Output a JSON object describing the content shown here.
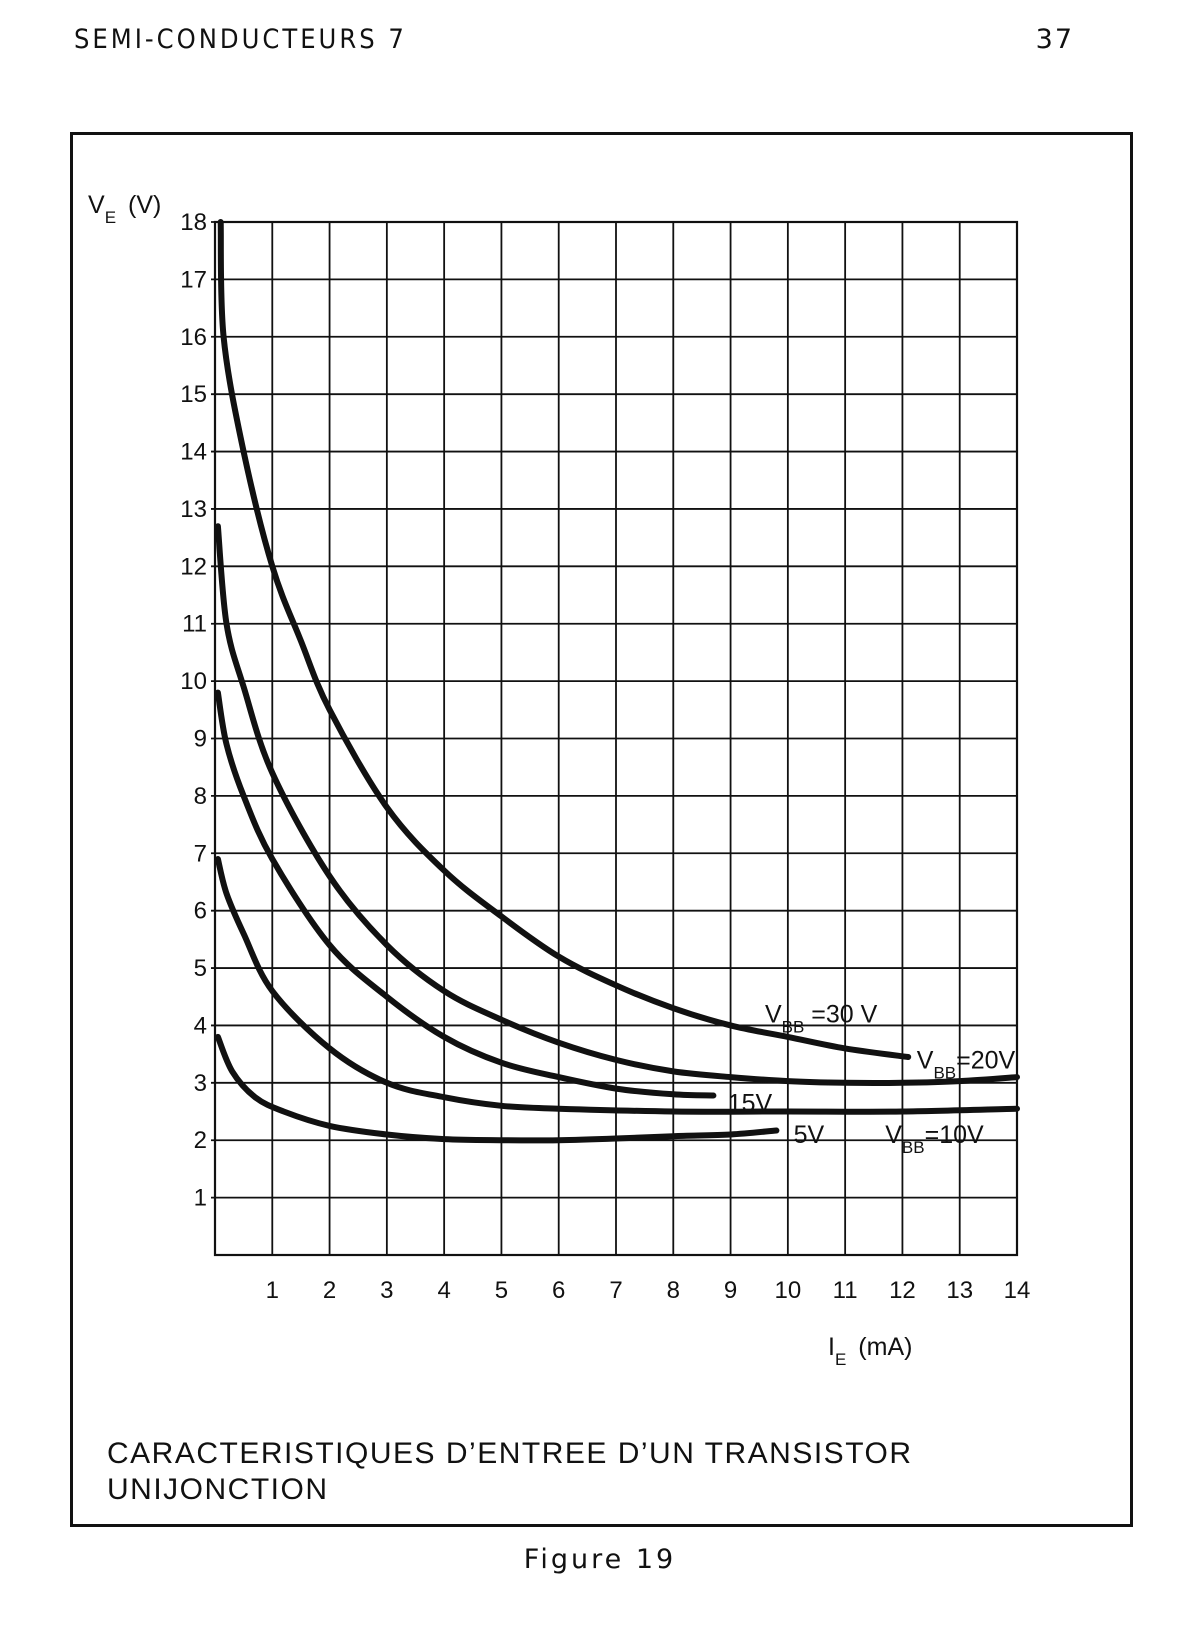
{
  "header": {
    "running_title": "SEMI-CONDUCTEURS 7",
    "page_number": "37"
  },
  "figure": {
    "caption": "Figure 19"
  },
  "chart_data": {
    "type": "line",
    "title_lines": [
      "CARACTERISTIQUES D’ENTREE D’UN TRANSISTOR",
      "UNIJONCTION"
    ],
    "ylabel": {
      "main": "V",
      "sub": "E",
      "unit": "(V)"
    },
    "xlabel": {
      "main": "I",
      "sub": "E",
      "unit": "(mA)"
    },
    "xlim": [
      0,
      14
    ],
    "ylim": [
      0,
      18
    ],
    "x_ticks": [
      1,
      2,
      3,
      4,
      5,
      6,
      7,
      8,
      9,
      10,
      11,
      12,
      13,
      14
    ],
    "y_ticks": [
      1,
      2,
      3,
      4,
      5,
      6,
      7,
      8,
      9,
      10,
      11,
      12,
      13,
      14,
      15,
      16,
      17,
      18
    ],
    "grid": true,
    "line_color": "#111111",
    "series": [
      {
        "points": [
          [
            0.1,
            18
          ],
          [
            0.15,
            16
          ],
          [
            0.5,
            14
          ],
          [
            1,
            12
          ],
          [
            1.5,
            10.7
          ],
          [
            2,
            9.5
          ],
          [
            3,
            7.8
          ],
          [
            4,
            6.7
          ],
          [
            5,
            5.9
          ],
          [
            6,
            5.2
          ],
          [
            7,
            4.7
          ],
          [
            8,
            4.3
          ],
          [
            9,
            4
          ],
          [
            10,
            3.8
          ],
          [
            11,
            3.6
          ],
          [
            12.1,
            3.45
          ]
        ]
      },
      {
        "points": [
          [
            0.05,
            12.7
          ],
          [
            0.2,
            11
          ],
          [
            0.5,
            9.9
          ],
          [
            1,
            8.4
          ],
          [
            2,
            6.6
          ],
          [
            3,
            5.4
          ],
          [
            4,
            4.6
          ],
          [
            5,
            4.1
          ],
          [
            6,
            3.7
          ],
          [
            7,
            3.4
          ],
          [
            8,
            3.2
          ],
          [
            9,
            3.1
          ],
          [
            10,
            3.03
          ],
          [
            11,
            3
          ],
          [
            12,
            3
          ],
          [
            13,
            3.03
          ],
          [
            14,
            3.1
          ]
        ]
      },
      {
        "points": [
          [
            0.05,
            9.8
          ],
          [
            0.2,
            8.9
          ],
          [
            0.5,
            8
          ],
          [
            1,
            6.9
          ],
          [
            2,
            5.4
          ],
          [
            3,
            4.5
          ],
          [
            4,
            3.8
          ],
          [
            5,
            3.35
          ],
          [
            6,
            3.1
          ],
          [
            7,
            2.9
          ],
          [
            8,
            2.8
          ],
          [
            8.7,
            2.78
          ]
        ]
      },
      {
        "points": [
          [
            0.05,
            6.9
          ],
          [
            0.2,
            6.3
          ],
          [
            0.5,
            5.6
          ],
          [
            1,
            4.6
          ],
          [
            2,
            3.6
          ],
          [
            3,
            3
          ],
          [
            4,
            2.75
          ],
          [
            5,
            2.6
          ],
          [
            6,
            2.55
          ],
          [
            8,
            2.5
          ],
          [
            10,
            2.5
          ],
          [
            12,
            2.5
          ],
          [
            14,
            2.55
          ]
        ]
      },
      {
        "points": [
          [
            0.05,
            3.8
          ],
          [
            0.3,
            3.2
          ],
          [
            0.7,
            2.75
          ],
          [
            1.2,
            2.5
          ],
          [
            2,
            2.25
          ],
          [
            3,
            2.1
          ],
          [
            4,
            2.02
          ],
          [
            5,
            2
          ],
          [
            6,
            2
          ],
          [
            7,
            2.03
          ],
          [
            8,
            2.07
          ],
          [
            9,
            2.1
          ],
          [
            9.8,
            2.17
          ]
        ]
      }
    ],
    "annotations": [
      {
        "parts": [
          {
            "t": "V"
          },
          {
            "t": "BB",
            "sub": true
          },
          {
            "t": "  "
          },
          {
            "t": "="
          },
          {
            "t": "30 V"
          }
        ],
        "x": 9.6,
        "y": 4.05
      },
      {
        "parts": [
          {
            "t": "V"
          },
          {
            "t": "BB",
            "sub": true
          },
          {
            "t": "=20V"
          }
        ],
        "x": 12.25,
        "y": 3.25
      },
      {
        "parts": [
          {
            "t": "15V"
          }
        ],
        "x": 8.95,
        "y": 2.5
      },
      {
        "parts": [
          {
            "t": "5V"
          }
        ],
        "x": 10.1,
        "y": 1.95
      },
      {
        "parts": [
          {
            "t": "V"
          },
          {
            "t": "BB",
            "sub": true
          },
          {
            "t": "=10V"
          }
        ],
        "x": 11.7,
        "y": 1.95
      }
    ]
  }
}
